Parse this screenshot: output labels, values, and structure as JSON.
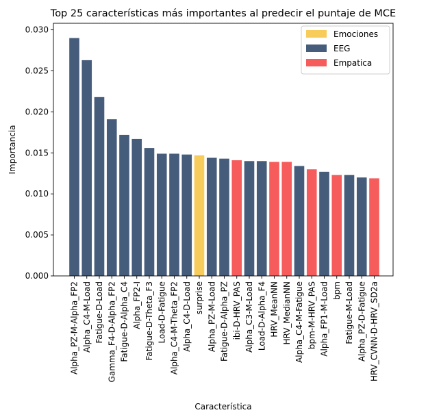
{
  "chart_data": {
    "type": "bar",
    "title": "Top 25 características más importantes al predecir el puntaje de MCE",
    "xlabel": "Característica",
    "ylabel": "Importancia",
    "ylim": [
      0,
      0.0308
    ],
    "yticks": [
      "0.000",
      "0.005",
      "0.010",
      "0.015",
      "0.020",
      "0.025",
      "0.030"
    ],
    "ytick_values": [
      0,
      0.005,
      0.01,
      0.015,
      0.02,
      0.025,
      0.03
    ],
    "legend_position": "top-right",
    "legend": [
      {
        "name": "Emociones",
        "color": "#f8cc5a"
      },
      {
        "name": "EEG",
        "color": "#465c7b"
      },
      {
        "name": "Empatica",
        "color": "#f65c5c"
      }
    ],
    "categories": [
      "Alpha_PZ-M-Alpha_FP2",
      "Alpha_C4-M-Load",
      "Fatigue-D-Load",
      "Gamma_F4-D-Alpha_FP2",
      "Fatigue-D-Alpha_C4",
      "Alpha_FP2-I",
      "Fatigue-D-Theta_F3",
      "Load-D-Fatigue",
      "Alpha_C4-M-Theta_FP2",
      "Alpha_C4-D-Load",
      "surprise",
      "Alpha_PZ-M-Load",
      "Fatigue-D-Alpha_PZ",
      "ibi-D-HRV_PAS",
      "Alpha_C3-M-Load",
      "Load-D-Alpha_F4",
      "HRV_MeanNN",
      "HRV_MedianNN",
      "Alpha_C4-M-Fatigue",
      "bpm-M-HRV_PAS",
      "Alpha_FP1-M-Load",
      "bpm",
      "Fatigue-M-Load",
      "Alpha_PZ-D-Fatigue",
      "HRV_CVNN-D-HRV_SD2a"
    ],
    "values": [
      0.029,
      0.0263,
      0.0218,
      0.0191,
      0.0172,
      0.0167,
      0.0156,
      0.0149,
      0.0149,
      0.0148,
      0.0147,
      0.0144,
      0.0143,
      0.0141,
      0.014,
      0.014,
      0.0139,
      0.0139,
      0.0134,
      0.013,
      0.0127,
      0.0123,
      0.0123,
      0.012,
      0.0119
    ],
    "groups": [
      "EEG",
      "EEG",
      "EEG",
      "EEG",
      "EEG",
      "EEG",
      "EEG",
      "EEG",
      "EEG",
      "EEG",
      "Emociones",
      "EEG",
      "EEG",
      "Empatica",
      "EEG",
      "EEG",
      "Empatica",
      "Empatica",
      "EEG",
      "Empatica",
      "EEG",
      "Empatica",
      "EEG",
      "EEG",
      "Empatica"
    ]
  }
}
